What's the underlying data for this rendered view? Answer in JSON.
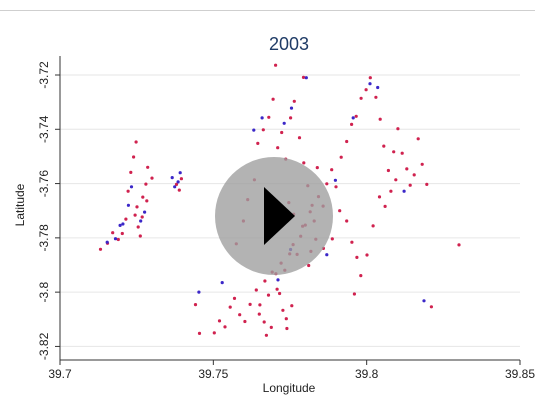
{
  "chart_data": {
    "type": "scatter",
    "title": "2003",
    "xlabel": "Longitude",
    "ylabel": "Latitude",
    "xlim": [
      39.7,
      39.85
    ],
    "ylim": [
      -3.825,
      -3.713
    ],
    "x_ticks": [
      39.7,
      39.75,
      39.8,
      39.85
    ],
    "x_tick_labels": [
      "39.7",
      "39.75",
      "39.8",
      "39.85"
    ],
    "y_ticks": [
      -3.72,
      -3.74,
      -3.76,
      -3.78,
      -3.8,
      -3.82
    ],
    "y_tick_labels": [
      "-3.72",
      "-3.74",
      "-3.76",
      "-3.78",
      "-3.8",
      "-3.82"
    ],
    "grid": true,
    "legend": "none",
    "colors": {
      "red": "#d0224f",
      "blue": "#3b27c8",
      "title": "#1f3b66",
      "grid": "#e6e6e6"
    },
    "series": [
      {
        "color": "red",
        "points": [
          [
            39.7132,
            -3.7842
          ],
          [
            39.7155,
            -3.782
          ],
          [
            39.7172,
            -3.7781
          ],
          [
            39.719,
            -3.7806
          ],
          [
            39.7203,
            -3.7784
          ],
          [
            39.7215,
            -3.7731
          ],
          [
            39.7222,
            -3.7628
          ],
          [
            39.7231,
            -3.7559
          ],
          [
            39.724,
            -3.7502
          ],
          [
            39.7248,
            -3.7447
          ],
          [
            39.7251,
            -3.7686
          ],
          [
            39.7255,
            -3.776
          ],
          [
            39.7262,
            -3.7793
          ],
          [
            39.7268,
            -3.7723
          ],
          [
            39.727,
            -3.765
          ],
          [
            39.728,
            -3.7602
          ],
          [
            39.7286,
            -3.754
          ],
          [
            39.73,
            -3.758
          ],
          [
            39.7245,
            -3.7716
          ],
          [
            39.7283,
            -3.7664
          ],
          [
            39.738,
            -3.7603
          ],
          [
            39.7389,
            -3.7624
          ],
          [
            39.7396,
            -3.7582
          ],
          [
            39.7442,
            -3.8046
          ],
          [
            39.7455,
            -3.8152
          ],
          [
            39.7503,
            -3.815
          ],
          [
            39.752,
            -3.8106
          ],
          [
            39.7538,
            -3.8128
          ],
          [
            39.7555,
            -3.8055
          ],
          [
            39.7569,
            -3.8023
          ],
          [
            39.7586,
            -3.8083
          ],
          [
            39.7603,
            -3.8108
          ],
          [
            39.762,
            -3.8045
          ],
          [
            39.764,
            -3.7992
          ],
          [
            39.7652,
            -3.8047
          ],
          [
            39.7668,
            -3.7959
          ],
          [
            39.768,
            -3.8011
          ],
          [
            39.7692,
            -3.7926
          ],
          [
            39.7708,
            -3.7989
          ],
          [
            39.7721,
            -3.7893
          ],
          [
            39.7733,
            -3.7919
          ],
          [
            39.7749,
            -3.7859
          ],
          [
            39.776,
            -3.7825
          ],
          [
            39.7773,
            -3.7861
          ],
          [
            39.7785,
            -3.7794
          ],
          [
            39.78,
            -3.7753
          ],
          [
            39.7816,
            -3.7704
          ],
          [
            39.7829,
            -3.7738
          ],
          [
            39.7843,
            -3.7648
          ],
          [
            39.7858,
            -3.7683
          ],
          [
            39.787,
            -3.7601
          ],
          [
            39.7886,
            -3.7549
          ],
          [
            39.79,
            -3.7612
          ],
          [
            39.7917,
            -3.7503
          ],
          [
            39.7935,
            -3.7445
          ],
          [
            39.7951,
            -3.7382
          ],
          [
            39.7966,
            -3.7352
          ],
          [
            39.7982,
            -3.7286
          ],
          [
            39.7998,
            -3.7254
          ],
          [
            39.8012,
            -3.721
          ],
          [
            39.803,
            -3.7282
          ],
          [
            39.7575,
            -3.7822
          ],
          [
            39.7598,
            -3.7738
          ],
          [
            39.7612,
            -3.7659
          ],
          [
            39.7634,
            -3.7586
          ],
          [
            39.7645,
            -3.7452
          ],
          [
            39.7663,
            -3.7402
          ],
          [
            39.7681,
            -3.7356
          ],
          [
            39.7695,
            -3.7289
          ],
          [
            39.771,
            -3.7468
          ],
          [
            39.7723,
            -3.7412
          ],
          [
            39.7736,
            -3.751
          ],
          [
            39.7752,
            -3.7358
          ],
          [
            39.7764,
            -3.7297
          ],
          [
            39.7781,
            -3.7431
          ],
          [
            39.7795,
            -3.7524
          ],
          [
            39.7808,
            -3.7608
          ],
          [
            39.7822,
            -3.768
          ],
          [
            39.7839,
            -3.7541
          ],
          [
            39.7703,
            -3.7164
          ],
          [
            39.7794,
            -3.7209
          ],
          [
            39.8044,
            -3.7363
          ],
          [
            39.8056,
            -3.7462
          ],
          [
            39.8071,
            -3.7552
          ],
          [
            39.8088,
            -3.7483
          ],
          [
            39.8102,
            -3.7398
          ],
          [
            39.8116,
            -3.7488
          ],
          [
            39.8131,
            -3.7546
          ],
          [
            39.8142,
            -3.7606
          ],
          [
            39.8155,
            -3.7568
          ],
          [
            39.8168,
            -3.7435
          ],
          [
            39.8181,
            -3.7529
          ],
          [
            39.8196,
            -3.7603
          ],
          [
            39.7912,
            -3.77
          ],
          [
            39.7935,
            -3.7738
          ],
          [
            39.7952,
            -3.7816
          ],
          [
            39.7968,
            -3.7872
          ],
          [
            39.7981,
            -3.7939
          ],
          [
            39.796,
            -3.8007
          ],
          [
            39.8001,
            -3.7863
          ],
          [
            39.8021,
            -3.7756
          ],
          [
            39.8042,
            -3.7649
          ],
          [
            39.806,
            -3.7684
          ],
          [
            39.8079,
            -3.7628
          ],
          [
            39.8095,
            -3.7586
          ],
          [
            39.7704,
            -3.7932
          ],
          [
            39.7716,
            -3.8005
          ],
          [
            39.7727,
            -3.8067
          ],
          [
            39.7738,
            -3.8098
          ],
          [
            39.7756,
            -3.805
          ],
          [
            39.7666,
            -3.811
          ],
          [
            39.7673,
            -3.8159
          ],
          [
            39.7689,
            -3.813
          ],
          [
            39.774,
            -3.8134
          ],
          [
            39.765,
            -3.8081
          ],
          [
            39.7762,
            -3.7713
          ],
          [
            39.7791,
            -3.7757
          ],
          [
            39.7818,
            -3.785
          ],
          [
            39.7834,
            -3.7805
          ],
          [
            39.7859,
            -3.7839
          ],
          [
            39.7888,
            -3.7804
          ],
          [
            39.7811,
            -3.7902
          ],
          [
            39.7746,
            -3.767
          ],
          [
            39.8211,
            -3.8054
          ],
          [
            39.8301,
            -3.7826
          ]
        ]
      },
      {
        "color": "blue",
        "points": [
          [
            39.7154,
            -3.7816
          ],
          [
            39.7181,
            -3.7803
          ],
          [
            39.7205,
            -3.7749
          ],
          [
            39.7223,
            -3.768
          ],
          [
            39.7233,
            -3.7612
          ],
          [
            39.7263,
            -3.7738
          ],
          [
            39.7276,
            -3.7705
          ],
          [
            39.7196,
            -3.7754
          ],
          [
            39.7366,
            -3.7578
          ],
          [
            39.7374,
            -3.7612
          ],
          [
            39.7385,
            -3.7594
          ],
          [
            39.7392,
            -3.756
          ],
          [
            39.7453,
            -3.8
          ],
          [
            39.7529,
            -3.7965
          ],
          [
            39.7632,
            -3.7403
          ],
          [
            39.7659,
            -3.7358
          ],
          [
            39.7731,
            -3.7378
          ],
          [
            39.7755,
            -3.7322
          ],
          [
            39.7752,
            -3.7843
          ],
          [
            39.7803,
            -3.721
          ],
          [
            39.7898,
            -3.7588
          ],
          [
            39.7956,
            -3.7358
          ],
          [
            39.8011,
            -3.7232
          ],
          [
            39.8036,
            -3.7246
          ],
          [
            39.8122,
            -3.7628
          ],
          [
            39.8187,
            -3.8032
          ],
          [
            39.7711,
            -3.7955
          ],
          [
            39.787,
            -3.7862
          ]
        ]
      }
    ]
  },
  "overlay": {
    "type": "play-button"
  }
}
